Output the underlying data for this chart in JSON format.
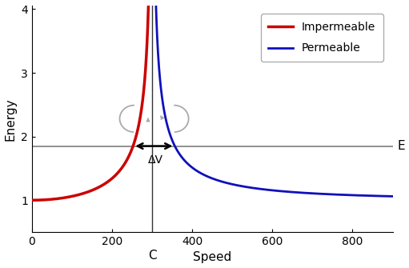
{
  "c_value": 300,
  "e_level": 1.85,
  "x_min": 0,
  "x_max": 900,
  "y_min": 0.5,
  "y_max": 4.05,
  "red_color": "#cc0000",
  "blue_color": "#1010bb",
  "e_line_color": "#888888",
  "vertical_line_color": "#333333",
  "xlabel": "Speed",
  "ylabel": "Energy",
  "legend_impermeable": "Impermeable",
  "legend_permeable": "Permeable",
  "label_E": "E",
  "label_C": "C",
  "label_dv": "ΔV",
  "yticks": [
    1,
    2,
    3,
    4
  ],
  "xticks": [
    0,
    200,
    400,
    600,
    800
  ],
  "bg_color": "#ffffff"
}
